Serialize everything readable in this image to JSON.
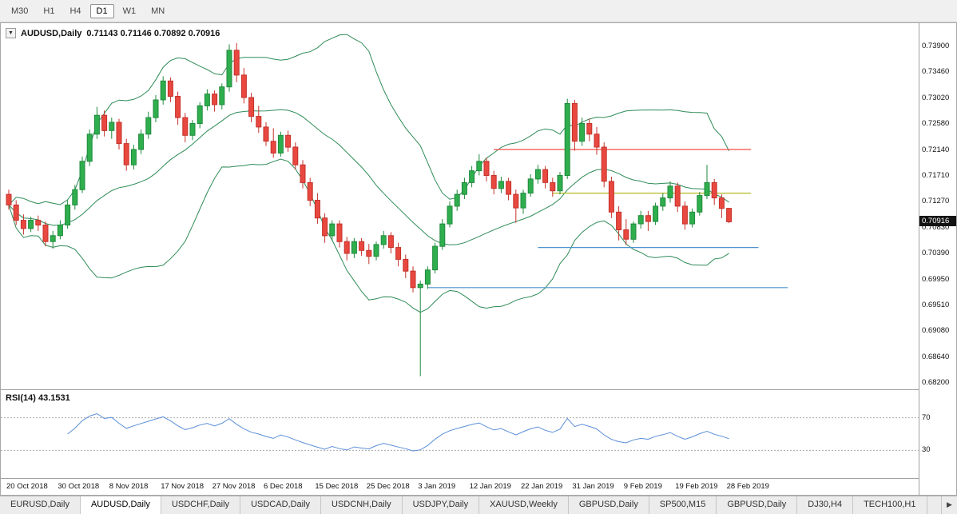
{
  "toolbar": {
    "timeframes": [
      "M30",
      "H1",
      "H4",
      "D1",
      "W1",
      "MN"
    ],
    "active_timeframe": "D1"
  },
  "chart": {
    "title": "AUDUSD,Daily",
    "ohlc": "0.71143 0.71146 0.70892 0.70916",
    "current_price": "0.70916",
    "price_ticks": [
      "0.73900",
      "0.73460",
      "0.73020",
      "0.72580",
      "0.72140",
      "0.71710",
      "0.71270",
      "0.70830",
      "0.70390",
      "0.69950",
      "0.69510",
      "0.69080",
      "0.68640",
      "0.68200"
    ]
  },
  "rsi": {
    "label": "RSI(14) 43.1531"
  },
  "tabs": {
    "items": [
      "EURUSD,Daily",
      "AUDUSD,Daily",
      "USDCHF,Daily",
      "USDCAD,Daily",
      "USDCNH,Daily",
      "USDJPY,Daily",
      "XAUUSD,Weekly",
      "GBPUSD,Daily",
      "SP500,M15",
      "GBPUSD,Daily",
      "DJ30,H4",
      "TECH100,H1"
    ],
    "active_index": 1,
    "scroll_right": "▶"
  },
  "chart_data": {
    "type": "candlestick",
    "symbol": "AUDUSD",
    "timeframe": "Daily",
    "title": "AUDUSD,Daily 0.71143 0.71146 0.70892 0.70916",
    "ylim": [
      0.682,
      0.739
    ],
    "grid": false,
    "colors": {
      "bull": "#2fae4e",
      "bull_border": "#1f8a3c",
      "bear": "#e8483f",
      "bear_border": "#c4322b",
      "bollinger": "#2e8b57",
      "rsi_line": "#5b8fd6",
      "badge_bg": "#141414"
    },
    "x_labels": [
      {
        "label": "20 Oct 2018",
        "bar": 0
      },
      {
        "label": "30 Oct 2018",
        "bar": 7
      },
      {
        "label": "8 Nov 2018",
        "bar": 14
      },
      {
        "label": "17 Nov 2018",
        "bar": 21
      },
      {
        "label": "27 Nov 2018",
        "bar": 28
      },
      {
        "label": "6 Dec 2018",
        "bar": 35
      },
      {
        "label": "15 Dec 2018",
        "bar": 42
      },
      {
        "label": "25 Dec 2018",
        "bar": 49
      },
      {
        "label": "3 Jan 2019",
        "bar": 56
      },
      {
        "label": "12 Jan 2019",
        "bar": 63
      },
      {
        "label": "22 Jan 2019",
        "bar": 70
      },
      {
        "label": "31 Jan 2019",
        "bar": 77
      },
      {
        "label": "9 Feb 2019",
        "bar": 84
      },
      {
        "label": "19 Feb 2019",
        "bar": 91
      },
      {
        "label": "28 Feb 2019",
        "bar": 98
      }
    ],
    "candles": [
      [
        0.7138,
        0.7146,
        0.7112,
        0.712
      ],
      [
        0.712,
        0.7128,
        0.7086,
        0.7094
      ],
      [
        0.7094,
        0.7104,
        0.707,
        0.708
      ],
      [
        0.708,
        0.71,
        0.7074,
        0.7094
      ],
      [
        0.7094,
        0.7102,
        0.7076,
        0.7086
      ],
      [
        0.7086,
        0.7092,
        0.705,
        0.7058
      ],
      [
        0.7058,
        0.7076,
        0.7046,
        0.7068
      ],
      [
        0.7068,
        0.7094,
        0.7062,
        0.7086
      ],
      [
        0.7086,
        0.7128,
        0.708,
        0.712
      ],
      [
        0.712,
        0.7154,
        0.7112,
        0.7146
      ],
      [
        0.7146,
        0.7202,
        0.714,
        0.7194
      ],
      [
        0.7194,
        0.7248,
        0.7186,
        0.724
      ],
      [
        0.724,
        0.7286,
        0.7232,
        0.7272
      ],
      [
        0.7272,
        0.728,
        0.7236,
        0.7246
      ],
      [
        0.7246,
        0.7268,
        0.7232,
        0.726
      ],
      [
        0.726,
        0.7266,
        0.7214,
        0.7224
      ],
      [
        0.7224,
        0.7232,
        0.7178,
        0.7188
      ],
      [
        0.7188,
        0.7222,
        0.718,
        0.7214
      ],
      [
        0.7214,
        0.7248,
        0.7206,
        0.724
      ],
      [
        0.724,
        0.7278,
        0.7232,
        0.7268
      ],
      [
        0.7268,
        0.7306,
        0.726,
        0.7298
      ],
      [
        0.7298,
        0.7338,
        0.729,
        0.733
      ],
      [
        0.733,
        0.7336,
        0.7294,
        0.7304
      ],
      [
        0.7304,
        0.7312,
        0.7256,
        0.7268
      ],
      [
        0.7268,
        0.7276,
        0.7226,
        0.7238
      ],
      [
        0.7238,
        0.7264,
        0.723,
        0.7258
      ],
      [
        0.7258,
        0.7294,
        0.725,
        0.7288
      ],
      [
        0.7288,
        0.7316,
        0.728,
        0.7308
      ],
      [
        0.7308,
        0.7314,
        0.7278,
        0.729
      ],
      [
        0.729,
        0.7326,
        0.7282,
        0.732
      ],
      [
        0.732,
        0.7392,
        0.7312,
        0.7382
      ],
      [
        0.7382,
        0.7394,
        0.7328,
        0.734
      ],
      [
        0.734,
        0.7352,
        0.7292,
        0.7302
      ],
      [
        0.7302,
        0.731,
        0.726,
        0.727
      ],
      [
        0.727,
        0.7288,
        0.7242,
        0.7252
      ],
      [
        0.7252,
        0.726,
        0.722,
        0.7228
      ],
      [
        0.7228,
        0.725,
        0.72,
        0.7208
      ],
      [
        0.7208,
        0.7244,
        0.7202,
        0.7238
      ],
      [
        0.7238,
        0.7246,
        0.721,
        0.7218
      ],
      [
        0.7218,
        0.7226,
        0.718,
        0.7188
      ],
      [
        0.7188,
        0.7196,
        0.7148,
        0.7158
      ],
      [
        0.7158,
        0.7166,
        0.7118,
        0.7128
      ],
      [
        0.7128,
        0.714,
        0.7088,
        0.7098
      ],
      [
        0.7098,
        0.7106,
        0.7056,
        0.7068
      ],
      [
        0.7068,
        0.7094,
        0.706,
        0.7088
      ],
      [
        0.7088,
        0.7094,
        0.7048,
        0.7058
      ],
      [
        0.7058,
        0.7066,
        0.7026,
        0.7038
      ],
      [
        0.7038,
        0.7064,
        0.703,
        0.7058
      ],
      [
        0.7058,
        0.7064,
        0.7034,
        0.7043
      ],
      [
        0.7043,
        0.7054,
        0.702,
        0.7033
      ],
      [
        0.7033,
        0.7058,
        0.7026,
        0.7053
      ],
      [
        0.7053,
        0.7076,
        0.7046,
        0.7068
      ],
      [
        0.7068,
        0.7074,
        0.7038,
        0.7048
      ],
      [
        0.7048,
        0.7056,
        0.7016,
        0.7028
      ],
      [
        0.7028,
        0.7036,
        0.6996,
        0.7008
      ],
      [
        0.7008,
        0.7016,
        0.6972,
        0.698
      ],
      [
        0.698,
        0.6992,
        0.683,
        0.6986
      ],
      [
        0.6986,
        0.7016,
        0.6978,
        0.701
      ],
      [
        0.701,
        0.7056,
        0.7004,
        0.705
      ],
      [
        0.705,
        0.7096,
        0.7044,
        0.7088
      ],
      [
        0.7088,
        0.7126,
        0.7082,
        0.7118
      ],
      [
        0.7118,
        0.7146,
        0.711,
        0.7138
      ],
      [
        0.7138,
        0.7166,
        0.713,
        0.7158
      ],
      [
        0.7158,
        0.7186,
        0.715,
        0.7178
      ],
      [
        0.7178,
        0.7206,
        0.717,
        0.7194
      ],
      [
        0.7194,
        0.72,
        0.716,
        0.717
      ],
      [
        0.717,
        0.7178,
        0.7138,
        0.7148
      ],
      [
        0.7148,
        0.7168,
        0.714,
        0.716
      ],
      [
        0.716,
        0.7166,
        0.7128,
        0.7138
      ],
      [
        0.7138,
        0.7146,
        0.709,
        0.7115
      ],
      [
        0.7115,
        0.7146,
        0.7105,
        0.714
      ],
      [
        0.714,
        0.7172,
        0.7134,
        0.7164
      ],
      [
        0.7164,
        0.7188,
        0.7156,
        0.718
      ],
      [
        0.718,
        0.7186,
        0.7148,
        0.7158
      ],
      [
        0.7158,
        0.7166,
        0.7134,
        0.7144
      ],
      [
        0.7144,
        0.7176,
        0.7138,
        0.717
      ],
      [
        0.717,
        0.73,
        0.7164,
        0.7292
      ],
      [
        0.7292,
        0.7298,
        0.7212,
        0.7228
      ],
      [
        0.7228,
        0.7268,
        0.722,
        0.7258
      ],
      [
        0.7258,
        0.7266,
        0.7228,
        0.724
      ],
      [
        0.724,
        0.7252,
        0.7205,
        0.7218
      ],
      [
        0.7218,
        0.7226,
        0.715,
        0.716
      ],
      [
        0.716,
        0.7168,
        0.7098,
        0.7108
      ],
      [
        0.7108,
        0.7118,
        0.706,
        0.7078
      ],
      [
        0.7078,
        0.7096,
        0.7052,
        0.7062
      ],
      [
        0.7062,
        0.7092,
        0.7056,
        0.7088
      ],
      [
        0.7088,
        0.711,
        0.708,
        0.7102
      ],
      [
        0.7102,
        0.711,
        0.7076,
        0.7092
      ],
      [
        0.7092,
        0.7124,
        0.7086,
        0.7118
      ],
      [
        0.7118,
        0.714,
        0.711,
        0.7132
      ],
      [
        0.7132,
        0.716,
        0.7124,
        0.7152
      ],
      [
        0.7152,
        0.7158,
        0.7108,
        0.7118
      ],
      [
        0.7118,
        0.7126,
        0.7078,
        0.7088
      ],
      [
        0.7088,
        0.7114,
        0.7082,
        0.7108
      ],
      [
        0.7108,
        0.7142,
        0.7102,
        0.7136
      ],
      [
        0.7136,
        0.7188,
        0.713,
        0.7158
      ],
      [
        0.7158,
        0.7164,
        0.712,
        0.7132
      ],
      [
        0.7132,
        0.7138,
        0.7098,
        0.71143
      ],
      [
        0.71143,
        0.71146,
        0.70892,
        0.70916
      ]
    ],
    "overlays": {
      "bollinger": {
        "period": 20,
        "deviation": 2,
        "color": "#2e8b57"
      },
      "hlines": [
        {
          "price": 0.7214,
          "from_bar": 66,
          "to_bar": 101,
          "color": "#fb4a46"
        },
        {
          "price": 0.714,
          "from_bar": 74,
          "to_bar": 101,
          "color": "#b4b821"
        },
        {
          "price": 0.7048,
          "from_bar": 72,
          "to_bar": 102,
          "color": "#4f93ce"
        },
        {
          "price": 0.698,
          "from_bar": 57,
          "to_bar": 106,
          "color": "#4f93ce"
        }
      ]
    },
    "rsi": {
      "period": 14,
      "current": 43.1531,
      "levels": [
        70,
        30
      ],
      "range": [
        0,
        100
      ]
    }
  }
}
